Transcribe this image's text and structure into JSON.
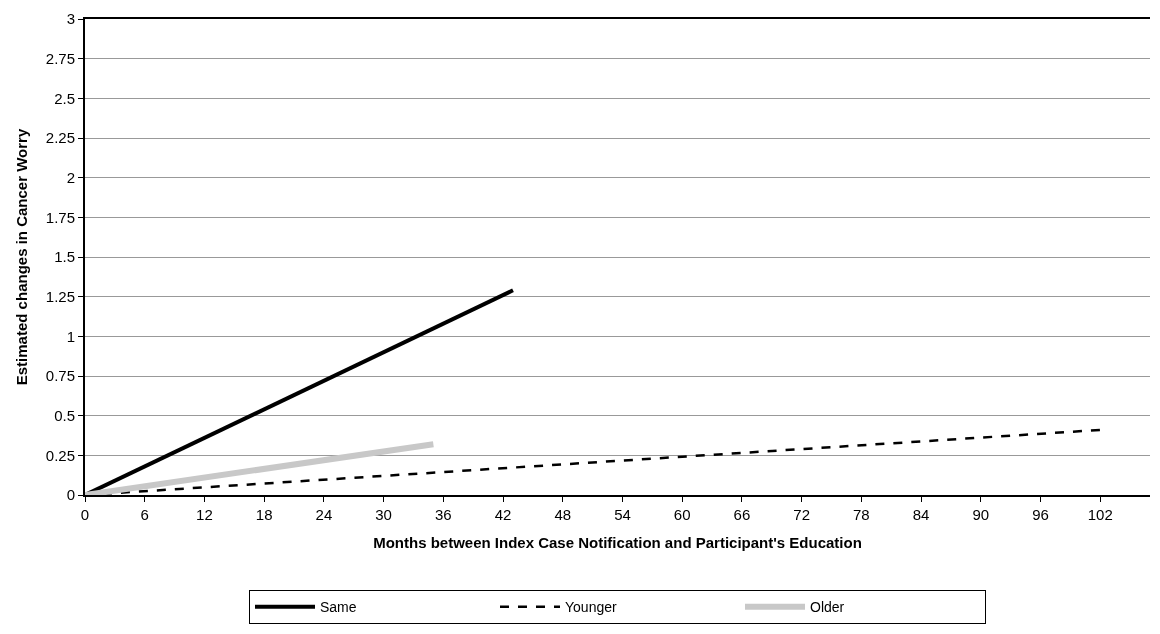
{
  "chart_data": {
    "type": "line",
    "xlabel": "Months between Index Case Notification and Participant's Education",
    "ylabel": "Estimated changes in Cancer Worry",
    "xlim": [
      0,
      107
    ],
    "xticks": [
      0,
      6,
      12,
      18,
      24,
      30,
      36,
      42,
      48,
      54,
      60,
      66,
      72,
      78,
      84,
      90,
      96,
      102
    ],
    "ylim": [
      0,
      3
    ],
    "yticks": [
      0,
      0.25,
      0.5,
      0.75,
      1,
      1.25,
      1.5,
      1.75,
      2,
      2.25,
      2.5,
      2.75,
      3
    ],
    "grid": "y",
    "legend": "bottom",
    "marker": "none",
    "series": [
      {
        "name": "Same",
        "color": "#000000",
        "x": [
          0,
          43
        ],
        "values": [
          0,
          1.29
        ],
        "line_style": "solid"
      },
      {
        "name": "Younger",
        "color": "#000000",
        "x": [
          0,
          102
        ],
        "values": [
          0,
          0.41
        ],
        "line_style": "dashed"
      },
      {
        "name": "Older",
        "color": "#c8c8c8",
        "x": [
          0,
          35
        ],
        "values": [
          0,
          0.32
        ],
        "line_style": "solid"
      }
    ]
  }
}
